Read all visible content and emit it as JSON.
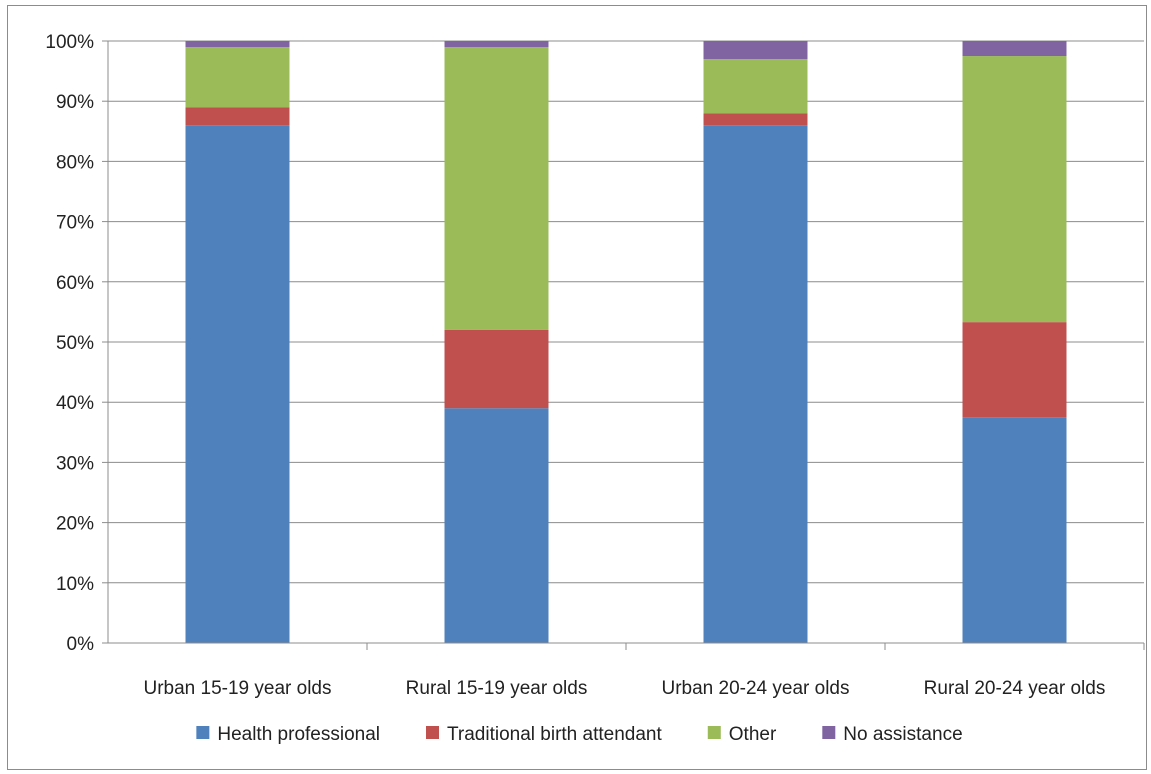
{
  "chart_data": {
    "type": "bar",
    "stacked": true,
    "percent": true,
    "categories": [
      "Urban 15-19 year olds",
      "Rural 15-19 year olds",
      "Urban 20-24 year olds",
      "Rural 20-24 year olds"
    ],
    "series": [
      {
        "name": "Health professional",
        "color": "#4f81bd",
        "values": [
          86,
          39,
          86,
          37.5
        ]
      },
      {
        "name": "Traditional birth attendant",
        "color": "#c0504d",
        "values": [
          3,
          13,
          2,
          15.8
        ]
      },
      {
        "name": "Other",
        "color": "#9bbb59",
        "values": [
          10,
          47,
          9,
          44.2
        ]
      },
      {
        "name": "No assistance",
        "color": "#8064a2",
        "values": [
          1,
          1,
          3,
          2.5
        ]
      }
    ],
    "yticks": [
      "0%",
      "10%",
      "20%",
      "30%",
      "40%",
      "50%",
      "60%",
      "70%",
      "80%",
      "90%",
      "100%"
    ],
    "ylim": [
      0,
      100
    ],
    "grid": true,
    "legend": "bottom"
  }
}
